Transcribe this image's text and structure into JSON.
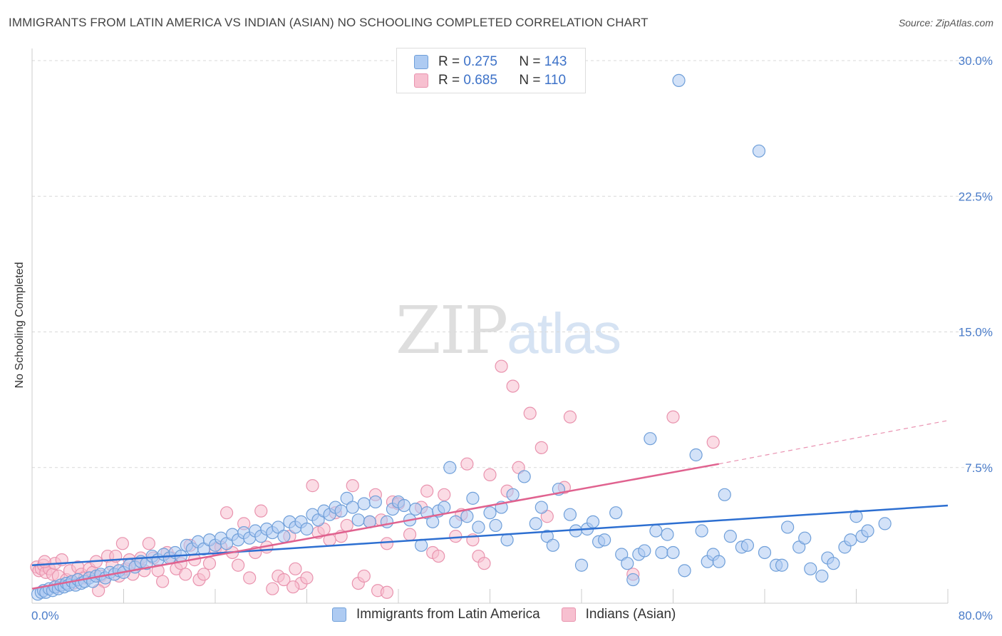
{
  "header": {
    "title": "IMMIGRANTS FROM LATIN AMERICA VS INDIAN (ASIAN) NO SCHOOLING COMPLETED CORRELATION CHART",
    "source": "Source: ZipAtlas.com"
  },
  "watermark": {
    "zip": "ZIP",
    "atlas": "atlas"
  },
  "legend": {
    "rows": [
      {
        "r_label": "R = ",
        "r_value": "0.275",
        "n_label": "N = ",
        "n_value": "143"
      },
      {
        "r_label": "R = ",
        "r_value": "0.685",
        "n_label": "N = ",
        "n_value": "110"
      }
    ]
  },
  "colors": {
    "blue_fill": "#aecbf2",
    "blue_stroke": "#6f9fd9",
    "blue_line": "#2d6fd1",
    "pink_fill": "#f7c0d0",
    "pink_stroke": "#e993ae",
    "pink_line": "#e0628f",
    "grid": "#d9d9d9",
    "tick": "#4a7cc9"
  },
  "chart_data": {
    "type": "scatter",
    "title": "IMMIGRANTS FROM LATIN AMERICA VS INDIAN (ASIAN) NO SCHOOLING COMPLETED CORRELATION CHART",
    "xlabel": "",
    "ylabel": "No Schooling Completed",
    "xlim": [
      0,
      80
    ],
    "ylim": [
      0,
      30
    ],
    "x_tick_labels": [
      "0.0%",
      "80.0%"
    ],
    "y_ticks": [
      7.5,
      15.0,
      22.5,
      30.0
    ],
    "y_tick_labels": [
      "7.5%",
      "15.0%",
      "22.5%",
      "30.0%"
    ],
    "grid": "horizontal dashed",
    "legend_position": "top-center",
    "series": [
      {
        "name": "Immigrants from Latin America",
        "color": "#aecbf2",
        "trend": {
          "x": [
            0,
            80
          ],
          "y": [
            2.1,
            5.4
          ]
        },
        "points": [
          [
            0.5,
            0.5
          ],
          [
            0.8,
            0.6
          ],
          [
            1,
            0.7
          ],
          [
            1.2,
            0.6
          ],
          [
            1.5,
            0.8
          ],
          [
            1.8,
            0.7
          ],
          [
            2,
            0.9
          ],
          [
            2.3,
            0.8
          ],
          [
            2.5,
            1
          ],
          [
            2.8,
            0.9
          ],
          [
            3,
            1.1
          ],
          [
            3.2,
            1
          ],
          [
            3.5,
            1.2
          ],
          [
            3.8,
            1
          ],
          [
            4,
            1.3
          ],
          [
            4.3,
            1.1
          ],
          [
            4.6,
            1.2
          ],
          [
            5,
            1.4
          ],
          [
            5.3,
            1.2
          ],
          [
            5.6,
            1.5
          ],
          [
            6,
            1.6
          ],
          [
            6.4,
            1.4
          ],
          [
            6.8,
            1.7
          ],
          [
            7.2,
            1.6
          ],
          [
            7.6,
            1.8
          ],
          [
            8,
            1.7
          ],
          [
            8.5,
            2.1
          ],
          [
            9,
            2
          ],
          [
            9.5,
            2.3
          ],
          [
            10,
            2.2
          ],
          [
            10.5,
            2.6
          ],
          [
            11,
            2.4
          ],
          [
            11.5,
            2.7
          ],
          [
            12,
            2.5
          ],
          [
            12.5,
            2.8
          ],
          [
            13,
            2.6
          ],
          [
            13.5,
            3.2
          ],
          [
            14,
            3
          ],
          [
            14.5,
            3.4
          ],
          [
            15,
            3
          ],
          [
            15.5,
            3.5
          ],
          [
            16,
            3.2
          ],
          [
            16.5,
            3.6
          ],
          [
            17,
            3.3
          ],
          [
            17.5,
            3.8
          ],
          [
            18,
            3.5
          ],
          [
            18.5,
            3.9
          ],
          [
            19,
            3.6
          ],
          [
            19.5,
            4
          ],
          [
            20,
            3.7
          ],
          [
            20.5,
            4.1
          ],
          [
            21,
            3.9
          ],
          [
            21.5,
            4.2
          ],
          [
            22,
            3.7
          ],
          [
            22.5,
            4.5
          ],
          [
            23,
            4.2
          ],
          [
            23.5,
            4.5
          ],
          [
            24,
            4.1
          ],
          [
            24.5,
            4.9
          ],
          [
            25,
            4.6
          ],
          [
            25.5,
            5.1
          ],
          [
            26,
            4.9
          ],
          [
            26.5,
            5.3
          ],
          [
            27,
            5.1
          ],
          [
            27.5,
            5.8
          ],
          [
            28,
            5.3
          ],
          [
            28.5,
            4.6
          ],
          [
            29,
            5.5
          ],
          [
            29.5,
            4.5
          ],
          [
            30,
            5.6
          ],
          [
            31,
            4.5
          ],
          [
            31.5,
            5.2
          ],
          [
            32,
            5.6
          ],
          [
            32.5,
            5.4
          ],
          [
            33,
            4.6
          ],
          [
            33.5,
            5.2
          ],
          [
            34,
            3.2
          ],
          [
            34.5,
            5
          ],
          [
            35,
            4.5
          ],
          [
            35.5,
            5.1
          ],
          [
            36,
            5.3
          ],
          [
            36.5,
            7.5
          ],
          [
            37,
            4.5
          ],
          [
            38,
            4.8
          ],
          [
            38.5,
            5.8
          ],
          [
            39,
            4.2
          ],
          [
            40,
            5
          ],
          [
            40.5,
            4.3
          ],
          [
            41,
            5.3
          ],
          [
            41.5,
            3.5
          ],
          [
            42,
            6
          ],
          [
            43,
            7
          ],
          [
            44,
            4.4
          ],
          [
            44.5,
            5.3
          ],
          [
            45,
            3.7
          ],
          [
            45.5,
            3.2
          ],
          [
            46,
            6.3
          ],
          [
            47,
            4.9
          ],
          [
            47.5,
            4
          ],
          [
            48,
            2.1
          ],
          [
            48.5,
            4.1
          ],
          [
            49,
            4.5
          ],
          [
            49.5,
            3.4
          ],
          [
            50,
            3.5
          ],
          [
            51,
            5
          ],
          [
            51.5,
            2.7
          ],
          [
            52,
            2.2
          ],
          [
            52.5,
            1.3
          ],
          [
            53,
            2.7
          ],
          [
            53.5,
            2.9
          ],
          [
            54,
            9.1
          ],
          [
            54.5,
            4
          ],
          [
            55,
            2.8
          ],
          [
            55.5,
            3.8
          ],
          [
            56,
            2.8
          ],
          [
            57,
            1.8
          ],
          [
            58,
            8.2
          ],
          [
            58.5,
            4
          ],
          [
            59,
            2.3
          ],
          [
            59.5,
            2.7
          ],
          [
            60,
            2.3
          ],
          [
            60.5,
            6
          ],
          [
            61,
            3.7
          ],
          [
            62,
            3.1
          ],
          [
            62.5,
            3.2
          ],
          [
            64,
            2.8
          ],
          [
            65,
            2.1
          ],
          [
            65.5,
            2.1
          ],
          [
            66,
            4.2
          ],
          [
            67,
            3.1
          ],
          [
            67.5,
            3.6
          ],
          [
            68,
            1.9
          ],
          [
            69,
            1.5
          ],
          [
            69.5,
            2.5
          ],
          [
            70,
            2.2
          ],
          [
            71,
            3.1
          ],
          [
            71.5,
            3.5
          ],
          [
            72,
            4.8
          ],
          [
            72.5,
            3.7
          ],
          [
            73,
            4
          ],
          [
            74.5,
            4.4
          ],
          [
            56.5,
            28.9
          ],
          [
            63.5,
            25
          ]
        ]
      },
      {
        "name": "Indians (Asian)",
        "color": "#f7c0d0",
        "trend": {
          "x": [
            0,
            60
          ],
          "y": [
            0.8,
            7.7
          ]
        },
        "trend_extension": {
          "x": [
            60,
            80
          ],
          "y": [
            7.7,
            10.1
          ]
        },
        "points": [
          [
            0.4,
            2
          ],
          [
            0.6,
            1.8
          ],
          [
            0.8,
            1.9
          ],
          [
            1,
            2.1
          ],
          [
            1.2,
            1.7
          ],
          [
            1.5,
            1.9
          ],
          [
            1.8,
            1.6
          ],
          [
            2,
            2.2
          ],
          [
            2.3,
            1.5
          ],
          [
            2.6,
            2.4
          ],
          [
            3,
            1.3
          ],
          [
            3.3,
            1.8
          ],
          [
            3.6,
            1.1
          ],
          [
            4,
            2
          ],
          [
            4.3,
            1.6
          ],
          [
            4.6,
            1.4
          ],
          [
            5,
            1.9
          ],
          [
            5.3,
            1.7
          ],
          [
            5.6,
            2.3
          ],
          [
            6,
            1.5
          ],
          [
            6.3,
            1.2
          ],
          [
            6.6,
            2.6
          ],
          [
            7,
            2.1
          ],
          [
            7.3,
            2.6
          ],
          [
            7.6,
            1.5
          ],
          [
            7.9,
            3.3
          ],
          [
            8.2,
            1.9
          ],
          [
            8.5,
            2.4
          ],
          [
            8.8,
            1.6
          ],
          [
            9.2,
            2.2
          ],
          [
            9.5,
            2.5
          ],
          [
            9.8,
            1.8
          ],
          [
            10.2,
            3.3
          ],
          [
            10.6,
            2.5
          ],
          [
            11,
            1.8
          ],
          [
            11.4,
            1.2
          ],
          [
            11.8,
            2.8
          ],
          [
            12.2,
            2.5
          ],
          [
            12.6,
            1.9
          ],
          [
            13,
            2.2
          ],
          [
            13.4,
            1.6
          ],
          [
            13.8,
            3.2
          ],
          [
            14.2,
            2.4
          ],
          [
            14.6,
            1.3
          ],
          [
            15,
            1.6
          ],
          [
            15.5,
            2.2
          ],
          [
            16,
            3
          ],
          [
            16.5,
            3.1
          ],
          [
            17,
            5
          ],
          [
            17.5,
            2.8
          ],
          [
            18,
            2.1
          ],
          [
            18.5,
            4.4
          ],
          [
            19,
            1.4
          ],
          [
            19.5,
            2.8
          ],
          [
            20,
            5.1
          ],
          [
            20.5,
            3.1
          ],
          [
            21,
            0.8
          ],
          [
            21.5,
            1.5
          ],
          [
            22,
            1.3
          ],
          [
            22.5,
            3.7
          ],
          [
            23,
            1.9
          ],
          [
            23.5,
            1.1
          ],
          [
            24,
            1.4
          ],
          [
            24.5,
            6.5
          ],
          [
            25,
            3.9
          ],
          [
            25.5,
            4.1
          ],
          [
            26,
            3.5
          ],
          [
            26.5,
            5
          ],
          [
            27,
            3.7
          ],
          [
            27.5,
            4.3
          ],
          [
            28,
            6.5
          ],
          [
            28.5,
            1.1
          ],
          [
            29,
            1.5
          ],
          [
            29.5,
            4.5
          ],
          [
            30,
            6
          ],
          [
            30.5,
            4.6
          ],
          [
            31,
            3.3
          ],
          [
            31.5,
            5.6
          ],
          [
            32,
            5.5
          ],
          [
            33,
            3.8
          ],
          [
            34,
            5.3
          ],
          [
            34.5,
            6.2
          ],
          [
            35,
            2.8
          ],
          [
            35.5,
            2.6
          ],
          [
            36,
            6
          ],
          [
            37,
            3.7
          ],
          [
            37.5,
            4.9
          ],
          [
            38,
            7.7
          ],
          [
            38.5,
            3.5
          ],
          [
            39,
            2.6
          ],
          [
            39.5,
            2.2
          ],
          [
            40,
            7.1
          ],
          [
            41,
            13.1
          ],
          [
            41.5,
            6.2
          ],
          [
            42,
            12
          ],
          [
            42.5,
            7.5
          ],
          [
            43.5,
            10.5
          ],
          [
            44.5,
            8.6
          ],
          [
            45,
            4.8
          ],
          [
            46.5,
            6.4
          ],
          [
            47,
            10.3
          ],
          [
            52.5,
            1.6
          ],
          [
            56,
            10.3
          ],
          [
            59.5,
            8.9
          ],
          [
            1.1,
            2.3
          ],
          [
            2.1,
            0.9
          ],
          [
            5.8,
            0.7
          ],
          [
            22.8,
            0.9
          ],
          [
            30.2,
            0.7
          ],
          [
            31,
            0.6
          ]
        ]
      }
    ]
  }
}
